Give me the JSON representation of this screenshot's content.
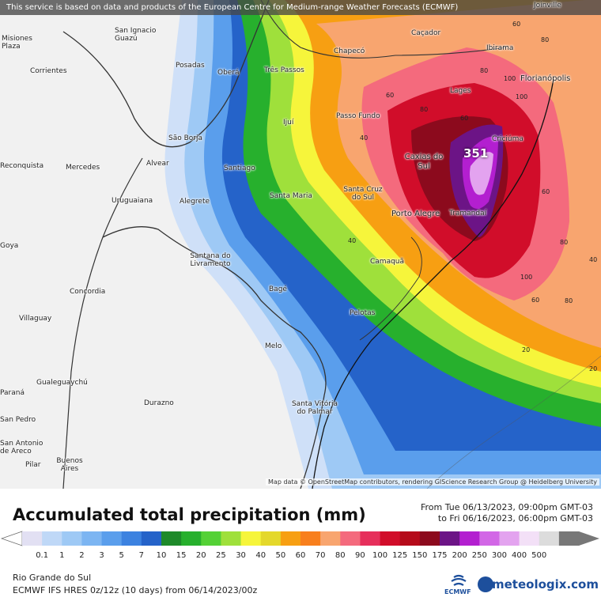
{
  "banner": "This service is based on data and products of the European Centre for Medium-range Weather Forecasts (ECMWF)",
  "attribution": "Map data © OpenStreetMap contributors, rendering GIScience Research Group @ Heidelberg University",
  "title": "Accumulated total precipitation (mm)",
  "period": {
    "from": "From Tue 06/13/2023, 09:00pm GMT-03",
    "to": "to Fri 06/16/2023, 06:00pm GMT-03"
  },
  "region": "Rio Grande do Sul",
  "model": "ECMWF IFS HRES 0z/12z (10 days) from 06/14/2023/00z",
  "max_value": "351",
  "brand": {
    "ecmwf": "ECMWF",
    "meteologix": "meteologix.com"
  },
  "cities": [
    {
      "name": "Joinville"
    },
    {
      "name": "Misiones Plaza"
    },
    {
      "name": "San Ignacio Guazú"
    },
    {
      "name": "Corrientes"
    },
    {
      "name": "Posadas"
    },
    {
      "name": "Oberá"
    },
    {
      "name": "Três Passos"
    },
    {
      "name": "Chapecó"
    },
    {
      "name": "Caçador"
    },
    {
      "name": "Ibirama"
    },
    {
      "name": "Florianópolis"
    },
    {
      "name": "Lages"
    },
    {
      "name": "Passo Fundo"
    },
    {
      "name": "Ijuí"
    },
    {
      "name": "São Borja"
    },
    {
      "name": "Criciúma"
    },
    {
      "name": "Caxias do Sul"
    },
    {
      "name": "Alvear"
    },
    {
      "name": "Santiago"
    },
    {
      "name": "Reconquista"
    },
    {
      "name": "Mercedes"
    },
    {
      "name": "Santa Cruz do Sul"
    },
    {
      "name": "Santa Maria"
    },
    {
      "name": "Uruguaiana"
    },
    {
      "name": "Alegrete"
    },
    {
      "name": "Porto Alegre"
    },
    {
      "name": "Tramandaí"
    },
    {
      "name": "Goya"
    },
    {
      "name": "Santana do Livramento"
    },
    {
      "name": "Camaquã"
    },
    {
      "name": "Concordia"
    },
    {
      "name": "Bagé"
    },
    {
      "name": "Villaguay"
    },
    {
      "name": "Pelotas"
    },
    {
      "name": "Melo"
    },
    {
      "name": "Gualeguaychú"
    },
    {
      "name": "Durazno"
    },
    {
      "name": "Santa Vitória do Palmar"
    },
    {
      "name": "San Pedro"
    },
    {
      "name": "San Antonio de Areco"
    },
    {
      "name": "Pilar"
    },
    {
      "name": "Buenos Aires"
    },
    {
      "name": "Paraná"
    }
  ],
  "contour_labels": [
    "60",
    "80",
    "80",
    "100",
    "100",
    "60",
    "80",
    "60",
    "40",
    "40",
    "60",
    "80",
    "100",
    "40",
    "60",
    "80",
    "20",
    "20"
  ],
  "legend": {
    "ticks": [
      "0.1",
      "1",
      "2",
      "3",
      "5",
      "7",
      "10",
      "15",
      "20",
      "25",
      "30",
      "40",
      "50",
      "60",
      "70",
      "80",
      "90",
      "100",
      "125",
      "150",
      "175",
      "200",
      "250",
      "300",
      "400",
      "500"
    ],
    "colors": [
      "#e2e0f3",
      "#bfd8f7",
      "#9ec9f5",
      "#7cb5f2",
      "#5a9eec",
      "#3c82e0",
      "#2563c9",
      "#1e8a2a",
      "#27b02d",
      "#54d136",
      "#9fe03b",
      "#f6f53b",
      "#e4d82b",
      "#f79f12",
      "#f87f1d",
      "#f8a56f",
      "#f46a7d",
      "#e62f5b",
      "#d10d2a",
      "#b50b1a",
      "#8c0a1d",
      "#6c1486",
      "#b31fd0",
      "#d267e6",
      "#e3a3ef",
      "#f3e0f7",
      "#dcdcdc",
      "#777777"
    ]
  }
}
